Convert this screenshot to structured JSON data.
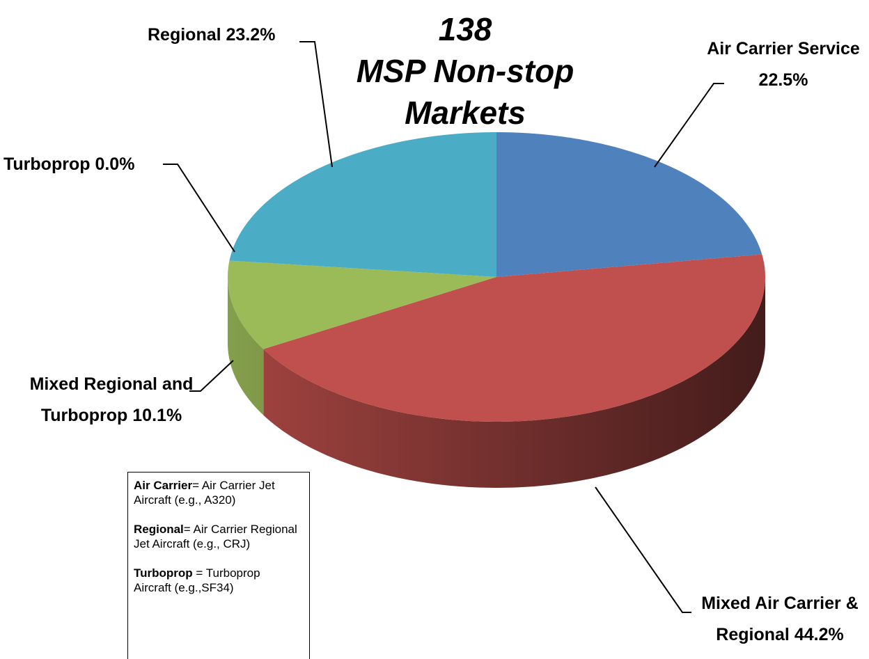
{
  "chart_data": {
    "type": "pie3d",
    "title": "138 MSP Non-stop Markets",
    "categories": [
      "Air Carrier Service",
      "Mixed Air Carrier & Regional",
      "Mixed Regional and Turboprop",
      "Turboprop",
      "Regional"
    ],
    "values": [
      22.5,
      44.2,
      10.1,
      0.0,
      23.2
    ],
    "value_labels": [
      "22.5%",
      "44.2%",
      "10.1%",
      "0.0%",
      "23.2%"
    ],
    "colors": [
      "#4f81bd",
      "#c0504d",
      "#9bbb59",
      "#8064a2",
      "#4bacc6"
    ],
    "notes": [
      {
        "term": "Air Carrier",
        "definition": "= Air Carrier Jet Aircraft (e.g., A320)"
      },
      {
        "term": "Regional",
        "definition": "= Air Carrier Regional Jet Aircraft (e.g., CRJ)"
      },
      {
        "term": "Turboprop",
        "definition": " = Turboprop Aircraft (e.g.,SF34)"
      }
    ]
  }
}
